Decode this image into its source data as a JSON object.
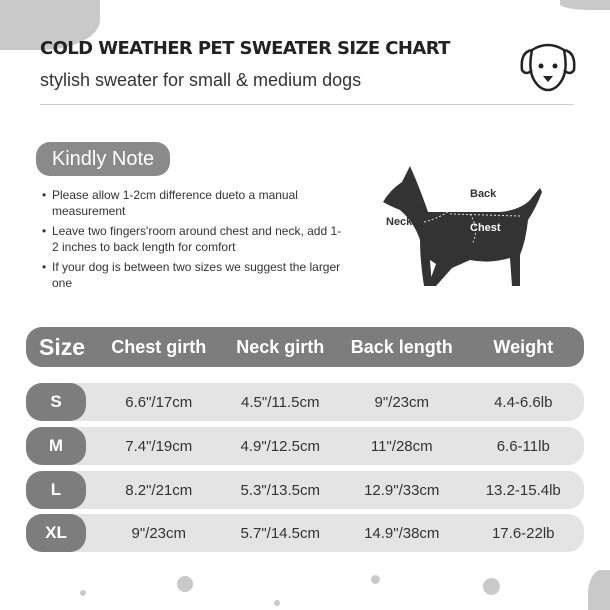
{
  "header": {
    "title": "COLD WEATHER PET SWEATER SIZE CHART",
    "subtitle": "stylish sweater for small & medium dogs"
  },
  "note": {
    "title": "Kindly Note",
    "items": [
      "Please allow 1-2cm difference dueto a manual measurement",
      "Leave two fingers'room around chest and neck, add 1-2 inches to back length for comfort",
      "If your dog is between two sizes we suggest the larger one"
    ]
  },
  "diagram": {
    "back": "Back",
    "neck": "Neck",
    "chest": "Chest"
  },
  "table": {
    "headers": [
      "Size",
      "Chest girth",
      "Neck girth",
      "Back length",
      "Weight"
    ],
    "rows": [
      [
        "S",
        "6.6\"/17cm",
        "4.5\"/11.5cm",
        "9\"/23cm",
        "4.4-6.6lb"
      ],
      [
        "M",
        "7.4\"/19cm",
        "4.9\"/12.5cm",
        "11\"/28cm",
        "6.6-11lb"
      ],
      [
        "L",
        "8.2\"/21cm",
        "5.3\"/13.5cm",
        "12.9\"/33cm",
        "13.2-15.4lb"
      ],
      [
        "XL",
        "9\"/23cm",
        "5.7\"/14.5cm",
        "14.9\"/38cm",
        "17.6-22lb"
      ]
    ]
  },
  "colors": {
    "pill": "#7d7d7d",
    "row": "#e4e4e4",
    "decor": "#c9c9c9"
  }
}
